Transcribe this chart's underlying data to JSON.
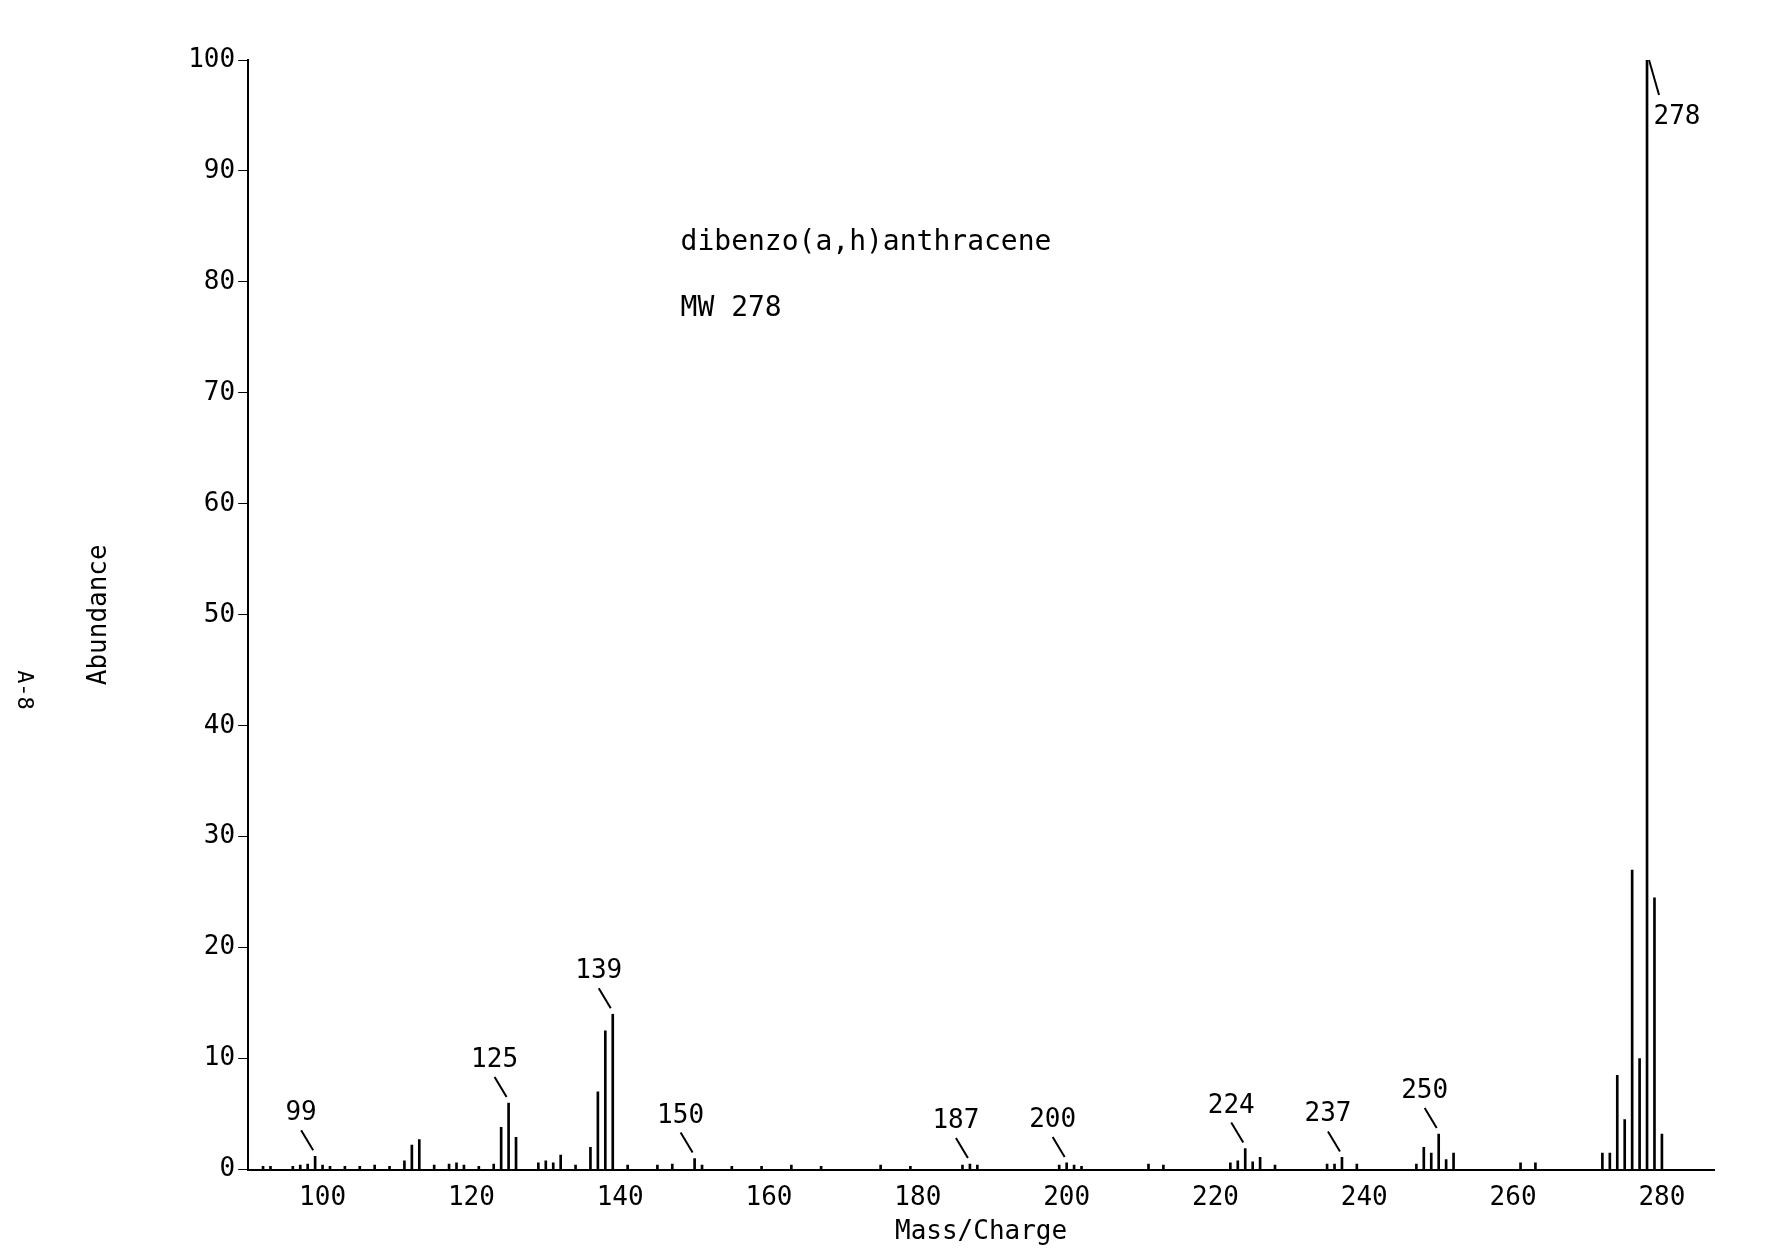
{
  "chart_data": {
    "type": "bar",
    "xlabel": "Mass/Charge",
    "ylabel": "Abundance",
    "x": [
      92,
      93,
      96,
      97,
      98,
      99,
      100,
      101,
      103,
      105,
      107,
      109,
      111,
      112,
      113,
      115,
      117,
      118,
      119,
      121,
      123,
      124,
      125,
      126,
      129,
      130,
      131,
      132,
      134,
      136,
      137,
      138,
      139,
      141,
      145,
      147,
      150,
      151,
      155,
      159,
      163,
      167,
      175,
      179,
      186,
      187,
      188,
      199,
      200,
      201,
      202,
      211,
      213,
      222,
      223,
      224,
      225,
      226,
      228,
      235,
      236,
      237,
      239,
      247,
      248,
      249,
      250,
      251,
      252,
      261,
      263,
      272,
      273,
      274,
      275,
      276,
      277,
      278,
      279,
      280
    ],
    "values": [
      0.3,
      0.3,
      0.3,
      0.4,
      0.5,
      1.2,
      0.4,
      0.3,
      0.3,
      0.3,
      0.4,
      0.3,
      0.8,
      2.2,
      2.7,
      0.4,
      0.5,
      0.6,
      0.4,
      0.3,
      0.5,
      3.8,
      6,
      2.9,
      0.6,
      0.8,
      0.6,
      1.3,
      0.4,
      2,
      7,
      12.5,
      14,
      0.4,
      0.4,
      0.5,
      1,
      0.4,
      0.3,
      0.3,
      0.4,
      0.3,
      0.4,
      0.3,
      0.4,
      0.5,
      0.4,
      0.4,
      0.6,
      0.4,
      0.3,
      0.5,
      0.4,
      0.6,
      0.8,
      1.9,
      0.7,
      1.1,
      0.4,
      0.5,
      0.5,
      1.1,
      0.5,
      0.5,
      2,
      1.5,
      3.2,
      0.9,
      1.5,
      0.6,
      0.6,
      1.5,
      1.5,
      8.5,
      4.5,
      27,
      10,
      100,
      24.5,
      3.2
    ],
    "color": "#000000",
    "xlim": [
      90,
      287
    ],
    "xticks": [
      100,
      120,
      140,
      160,
      180,
      200,
      220,
      240,
      260,
      280
    ],
    "ylim": [
      0,
      100
    ],
    "yticks": [
      0,
      10,
      20,
      30,
      40,
      50,
      60,
      70,
      80,
      90,
      100
    ],
    "grid": false,
    "legend": false,
    "annotations": [
      "dibenzo(a,h)anthracene",
      "MW 278",
      "A-8",
      {
        "text": "99",
        "x": 99,
        "y": 1.2
      },
      {
        "text": "125",
        "x": 125,
        "y": 6
      },
      {
        "text": "139",
        "x": 139,
        "y": 14
      },
      {
        "text": "150",
        "x": 150,
        "y": 1
      },
      {
        "text": "187",
        "x": 187,
        "y": 0.5
      },
      {
        "text": "200",
        "x": 200,
        "y": 0.6
      },
      {
        "text": "224",
        "x": 224,
        "y": 1.9
      },
      {
        "text": "237",
        "x": 237,
        "y": 1.1
      },
      {
        "text": "250",
        "x": 250,
        "y": 3.2
      },
      {
        "text": "278",
        "x": 278,
        "y": 100
      }
    ]
  }
}
